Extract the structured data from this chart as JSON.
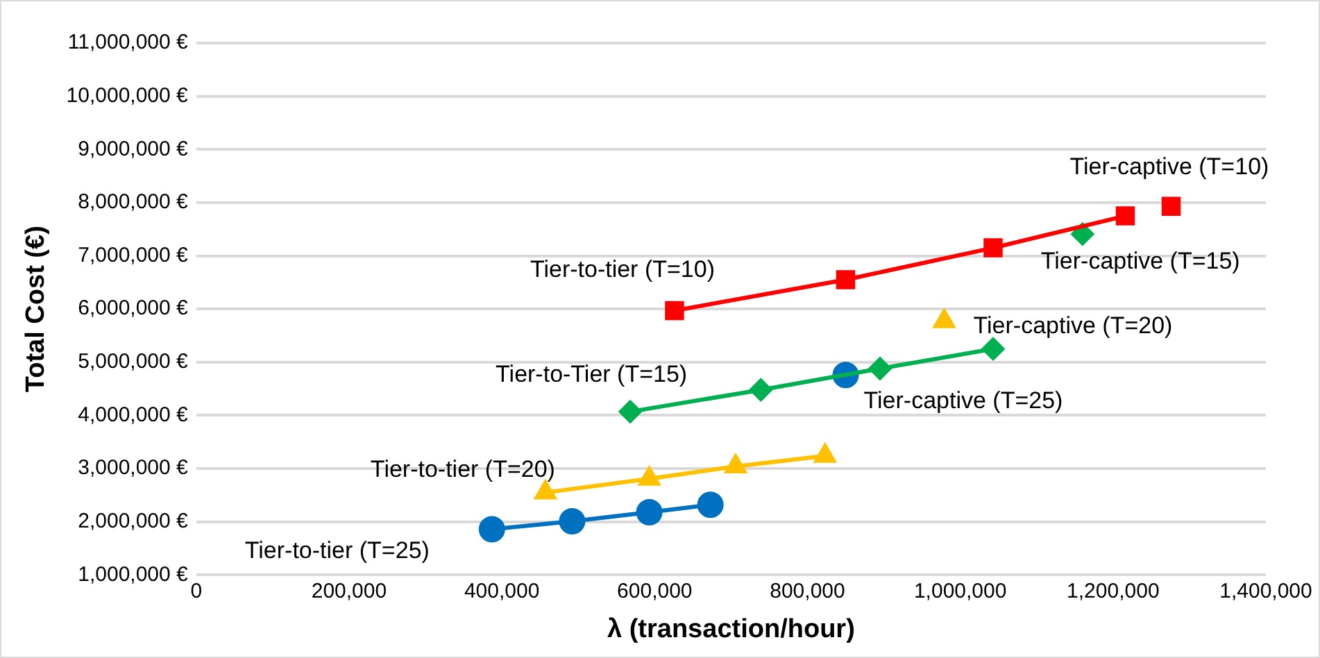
{
  "chart_data": {
    "type": "line",
    "xlabel": "λ (transaction/hour)",
    "ylabel": "Total Cost (€)",
    "xlim": [
      0,
      1400000
    ],
    "xticks": [
      {
        "value": 0,
        "label": "0"
      },
      {
        "value": 200000,
        "label": "200,000"
      },
      {
        "value": 400000,
        "label": "400,000"
      },
      {
        "value": 600000,
        "label": "600,000"
      },
      {
        "value": 800000,
        "label": "800,000"
      },
      {
        "value": 1000000,
        "label": "1,000,000"
      },
      {
        "value": 1200000,
        "label": "1,200,000"
      },
      {
        "value": 1400000,
        "label": "1,400,000"
      }
    ],
    "ylim": [
      1000000,
      11000000
    ],
    "yticks": [
      {
        "value": 1000000,
        "label": "1,000,000 €"
      },
      {
        "value": 2000000,
        "label": "2,000,000 €"
      },
      {
        "value": 3000000,
        "label": "3,000,000 €"
      },
      {
        "value": 4000000,
        "label": "4,000,000 €"
      },
      {
        "value": 5000000,
        "label": "5,000,000 €"
      },
      {
        "value": 6000000,
        "label": "6,000,000 €"
      },
      {
        "value": 7000000,
        "label": "7,000,000 €"
      },
      {
        "value": 8000000,
        "label": "8,000,000 €"
      },
      {
        "value": 9000000,
        "label": "9,000,000 €"
      },
      {
        "value": 10000000,
        "label": "10,000,000 €"
      },
      {
        "value": 11000000,
        "label": "11,000,000 €"
      }
    ],
    "grid": "y",
    "legend": false,
    "series": [
      {
        "type": "line",
        "marker": "square",
        "color": "#ff0000",
        "x": [
          626000,
          850000,
          1043000,
          1216000
        ],
        "values": [
          5970000,
          6550000,
          7150000,
          7750000
        ]
      },
      {
        "type": "line",
        "marker": "diamond",
        "color": "#00b050",
        "x": [
          568000,
          739000,
          895000,
          1043000
        ],
        "values": [
          4070000,
          4480000,
          4880000,
          5250000
        ]
      },
      {
        "type": "line",
        "marker": "triangle",
        "color": "#ffc000",
        "x": [
          457000,
          593000,
          706000,
          823000
        ],
        "values": [
          2550000,
          2810000,
          3040000,
          3240000
        ]
      },
      {
        "type": "line",
        "marker": "circle",
        "color": "#0070c0",
        "x": [
          387000,
          492000,
          593000,
          673000
        ],
        "values": [
          1860000,
          2010000,
          2180000,
          2320000
        ]
      },
      {
        "type": "scatter",
        "marker": "square",
        "color": "#ff0000",
        "x": [
          1276000
        ],
        "values": [
          7930000
        ]
      },
      {
        "type": "scatter",
        "marker": "diamond",
        "color": "#00b050",
        "x": [
          1160000
        ],
        "values": [
          7410000
        ]
      },
      {
        "type": "scatter",
        "marker": "triangle",
        "color": "#ffc000",
        "x": [
          979000
        ],
        "values": [
          5770000
        ]
      },
      {
        "type": "scatter",
        "marker": "circle",
        "color": "#0070c0",
        "x": [
          850000
        ],
        "values": [
          4760000
        ]
      }
    ],
    "annotations": [
      {
        "text": "Tier-to-tier (T=10)",
        "x": 626000,
        "y": 5970000
      },
      {
        "text": "Tier-to-Tier (T=15)",
        "x": 568000,
        "y": 4070000
      },
      {
        "text": "Tier-to-tier (T=20)",
        "x": 457000,
        "y": 2550000
      },
      {
        "text": "Tier-to-tier (T=25)",
        "x": 387000,
        "y": 1860000
      },
      {
        "text": "Tier-captive (T=10)",
        "x": 1276000,
        "y": 7930000
      },
      {
        "text": "Tier-captive (T=15)",
        "x": 1160000,
        "y": 7410000
      },
      {
        "text": "Tier-captive (T=20)",
        "x": 979000,
        "y": 5770000
      },
      {
        "text": "Tier-captive (T=25)",
        "x": 850000,
        "y": 4760000
      }
    ]
  }
}
